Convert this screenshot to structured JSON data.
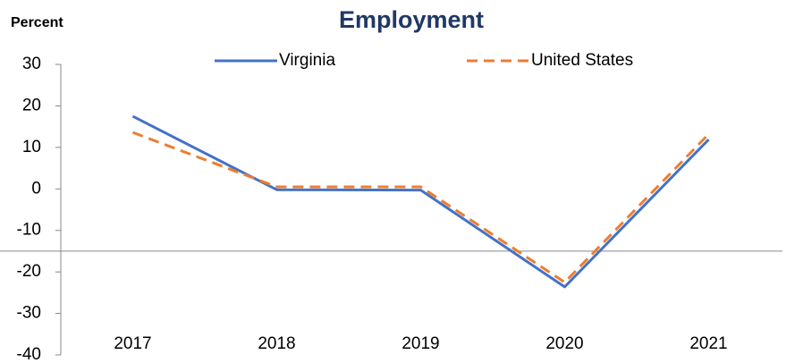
{
  "chart_data": {
    "type": "line",
    "title": "Employment",
    "y_label": "Percent",
    "categories": [
      "2017",
      "2018",
      "2019",
      "2020",
      "2021"
    ],
    "series": [
      {
        "name": "Virginia",
        "color": "#4472c4",
        "dash": false,
        "values": [
          17.5,
          -0.2,
          -0.3,
          -23.6,
          11.9
        ]
      },
      {
        "name": "United States",
        "color": "#ed7d31",
        "dash": true,
        "values": [
          13.6,
          0.5,
          0.5,
          -22.5,
          13.2
        ]
      }
    ],
    "ylim": [
      -40,
      30
    ],
    "yticks": [
      -40,
      -30,
      -20,
      -10,
      0,
      10,
      20,
      30
    ],
    "x_axis_crosses_at": -15,
    "grid": false,
    "legend": "top"
  }
}
